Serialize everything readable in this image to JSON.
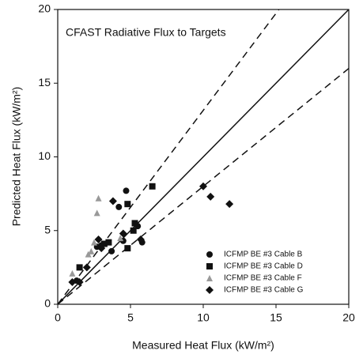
{
  "chart_data": {
    "type": "scatter",
    "title": "CFAST Radiative Flux to Targets",
    "x_label": "Measured Heat Flux (kW/m²)",
    "y_label": "Predicted Heat Flux (kW/m²)",
    "xlim": [
      0,
      20
    ],
    "ylim": [
      0,
      20
    ],
    "xticks": [
      0,
      5,
      10,
      15,
      20
    ],
    "yticks": [
      0,
      5,
      10,
      15,
      20
    ],
    "legend": "lower right",
    "lines": [
      {
        "x": [
          0,
          20
        ],
        "y": [
          0,
          20
        ],
        "dashed": false
      },
      {
        "x": [
          0,
          15.2
        ],
        "y": [
          0,
          20
        ],
        "dashed": true
      },
      {
        "x": [
          0,
          20
        ],
        "y": [
          0,
          16
        ],
        "dashed": true
      }
    ],
    "series": [
      {
        "name": "ICFMP BE #3 Cable B",
        "color": "#111111",
        "marker": "circle",
        "x": [
          4.7,
          4.2,
          3.7,
          2.7,
          3.0,
          5.5,
          5.8,
          4.5,
          1.3
        ],
        "y": [
          7.7,
          6.6,
          3.6,
          3.9,
          4.0,
          5.3,
          4.2,
          4.3,
          1.6
        ]
      },
      {
        "name": "ICFMP BE #3 Cable D",
        "color": "#111111",
        "marker": "square",
        "x": [
          6.5,
          4.8,
          3.5,
          5.2,
          1.5,
          3.2,
          4.8,
          5.3
        ],
        "y": [
          8.0,
          6.8,
          4.2,
          5.0,
          2.5,
          4.1,
          3.8,
          5.5
        ]
      },
      {
        "name": "ICFMP BE #3 Cable F",
        "color": "#999999",
        "marker": "triangle",
        "x": [
          2.8,
          2.7,
          2.1,
          2.3,
          1.0,
          4.3,
          2.5
        ],
        "y": [
          7.2,
          6.2,
          3.4,
          3.6,
          2.1,
          4.5,
          4.2
        ]
      },
      {
        "name": "ICFMP BE #3 Cable G",
        "color": "#111111",
        "marker": "diamond",
        "x": [
          3.8,
          10.0,
          10.5,
          11.8,
          2.8,
          4.5,
          5.7,
          1.0,
          1.5,
          2.0,
          3.0
        ],
        "y": [
          7.0,
          8.0,
          7.3,
          6.8,
          4.4,
          4.8,
          4.4,
          1.5,
          1.5,
          2.5,
          3.8
        ]
      }
    ]
  }
}
